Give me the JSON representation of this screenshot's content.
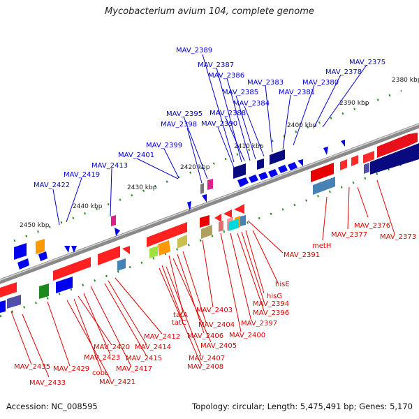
{
  "title": "Mycobacterium avium 104, complete genome",
  "footer": {
    "accession": "Accession: NC_008595",
    "topology": "Topology: circular; Length: 5,475,491 bp; Genes: 5,170"
  },
  "colors": {
    "forward_label": "#0000cc",
    "reverse_label": "#dd0000",
    "backbone": "#8a8a8a",
    "tick": "#2e8b2e"
  },
  "scale_labels": [
    "2380 kbp",
    "2390 kbp",
    "2400 kbp",
    "2410 kbp",
    "2420 kbp",
    "2430 kbp",
    "2440 kbp",
    "2450 kbp"
  ],
  "forward_genes": [
    "MAV_2389",
    "MAV_2387",
    "MAV_2386",
    "MAV_2385",
    "MAV_2384",
    "MAV_2383",
    "MAV_2381",
    "MAV_2380",
    "MAV_2378",
    "MAV_2375",
    "MAV_2388",
    "MAV_2395",
    "MAV_2398",
    "MAV_2390",
    "MAV_2399",
    "MAV_2401",
    "MAV_2413",
    "MAV_2419",
    "MAV_2422"
  ],
  "reverse_genes": [
    "metH",
    "MAV_2377",
    "MAV_2376",
    "MAV_2373",
    "MAV_2391",
    "hisE",
    "hisG",
    "MAV_2394",
    "MAV_2396",
    "MAV_2397",
    "MAV_2400",
    "MAV_2403",
    "tatA",
    "tatC",
    "MAV_2404",
    "MAV_2406",
    "MAV_2405",
    "MAV_2412",
    "MAV_2407",
    "MAV_2408",
    "MAV_2414",
    "MAV_2415",
    "MAV_2417",
    "MAV_2420",
    "MAV_2423",
    "cobL",
    "MAV_2421",
    "MAV_2429",
    "MAV_2435",
    "MAV_2433"
  ]
}
